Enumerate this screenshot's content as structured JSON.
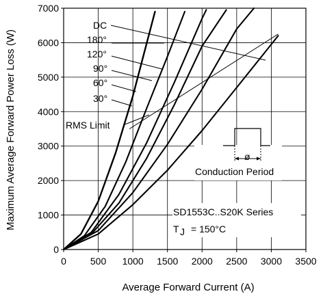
{
  "chart_data": {
    "type": "line",
    "xlabel": "Average Forward Current (A)",
    "ylabel": "Maximum Average Forward Power Loss (W)",
    "xlim": [
      0,
      3500
    ],
    "ylim": [
      0,
      7000
    ],
    "xticks": [
      "0",
      "500",
      "1000",
      "1500",
      "2000",
      "2500",
      "3000",
      "3500"
    ],
    "yticks": [
      "0",
      "1000",
      "2000",
      "3000",
      "4000",
      "5000",
      "6000",
      "7000"
    ],
    "grid": true,
    "series": [
      {
        "name": "30°",
        "x": [
          0,
          250,
          500,
          750,
          1000,
          1150,
          1320
        ],
        "y": [
          0,
          450,
          1400,
          2800,
          4450,
          5600,
          6900
        ]
      },
      {
        "name": "60°",
        "x": [
          0,
          300,
          600,
          900,
          1200,
          1500,
          1750
        ],
        "y": [
          0,
          400,
          1250,
          2550,
          4100,
          5600,
          6900
        ]
      },
      {
        "name": "90°",
        "x": [
          0,
          400,
          800,
          1200,
          1600,
          2000,
          2060
        ],
        "y": [
          0,
          500,
          1600,
          3100,
          4850,
          6700,
          6950
        ]
      },
      {
        "name": "120°",
        "x": [
          0,
          400,
          800,
          1200,
          1600,
          2000,
          2350
        ],
        "y": [
          0,
          450,
          1350,
          2650,
          4200,
          5900,
          6950
        ]
      },
      {
        "name": "180°",
        "x": [
          0,
          500,
          1000,
          1500,
          2000,
          2500,
          2750
        ],
        "y": [
          0,
          550,
          1650,
          3050,
          4650,
          6400,
          7000
        ]
      },
      {
        "name": "DC",
        "x": [
          0,
          500,
          1000,
          1500,
          2000,
          2500,
          3000,
          3100
        ],
        "y": [
          0,
          450,
          1300,
          2300,
          3450,
          4700,
          5950,
          6200
        ]
      }
    ],
    "rms_limit": {
      "x": [
        950,
        3100
      ],
      "y": [
        3500,
        6250
      ]
    },
    "annotations": {
      "curve_labels": [
        "DC",
        "180°",
        "120°",
        "90°",
        "60°",
        "30°"
      ],
      "rms_limit_label": "RMS Limit",
      "conduction_period_label": "Conduction Period",
      "phi_symbol": "ø",
      "series_label": "SD1553C..S20K Series",
      "tj_main": "T",
      "tj_sub": "J",
      "tj_value": "= 150°C"
    }
  }
}
